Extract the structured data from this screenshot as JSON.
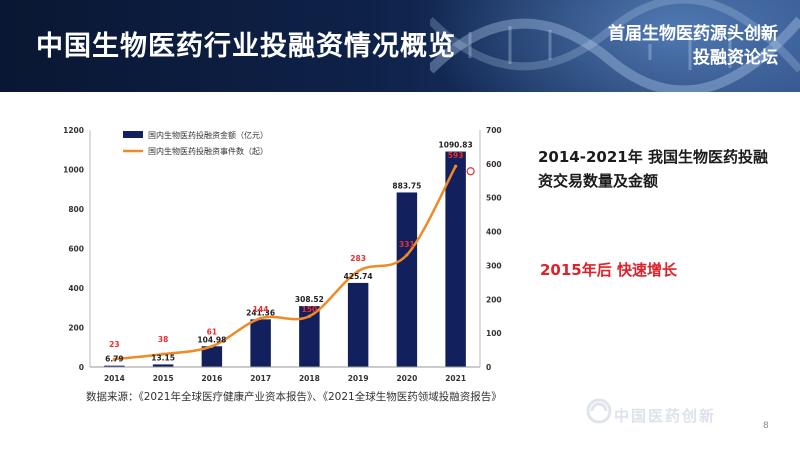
{
  "header": {
    "title": "中国生物医药行业投融资情况概览",
    "forum_line1": "首届生物医药源头创新",
    "forum_line2": "投融资论坛"
  },
  "chart_data": {
    "type": "bar",
    "categories": [
      "2014",
      "2015",
      "2016",
      "2017",
      "2018",
      "2019",
      "2020",
      "2021"
    ],
    "series": [
      {
        "name": "国内生物医药投融资金额（亿元）",
        "kind": "bar",
        "axis": "left",
        "color": "#13205e",
        "values": [
          6.79,
          13.15,
          104.98,
          241.36,
          308.52,
          425.74,
          883.75,
          1090.83
        ],
        "labels": [
          "6.79",
          "13.15",
          "104.98",
          "241.36",
          "308.52",
          "425.74",
          "883.75",
          "1090.83"
        ]
      },
      {
        "name": "国内生物医药投融资事件数（起）",
        "kind": "line",
        "axis": "right",
        "color": "#f08a24",
        "values": [
          23,
          38,
          61,
          144,
          150,
          283,
          331,
          593
        ],
        "labels": [
          "23",
          "38",
          "61",
          "144",
          "150",
          "283",
          "331",
          "593"
        ]
      }
    ],
    "ylim_left": [
      0,
      1200
    ],
    "yticks_left": [
      "0",
      "200",
      "400",
      "600",
      "800",
      "1000",
      "1200"
    ],
    "ylim_right": [
      0,
      700
    ],
    "yticks_right": [
      "0",
      "100",
      "200",
      "300",
      "400",
      "500",
      "600",
      "700"
    ],
    "legend": "top-left",
    "label_color_line": "#e8302e"
  },
  "source_note": "数据来源：《2021年全球医疗健康产业资本报告》、《2021全球生物医药领域投融资报告》",
  "headline_1": "2014-2021年 我国生物医药投融",
  "headline_2": "资交易数量及金额",
  "highlight": "2015年后 快速增长",
  "watermark": "中国医药创新",
  "page_number": "8"
}
